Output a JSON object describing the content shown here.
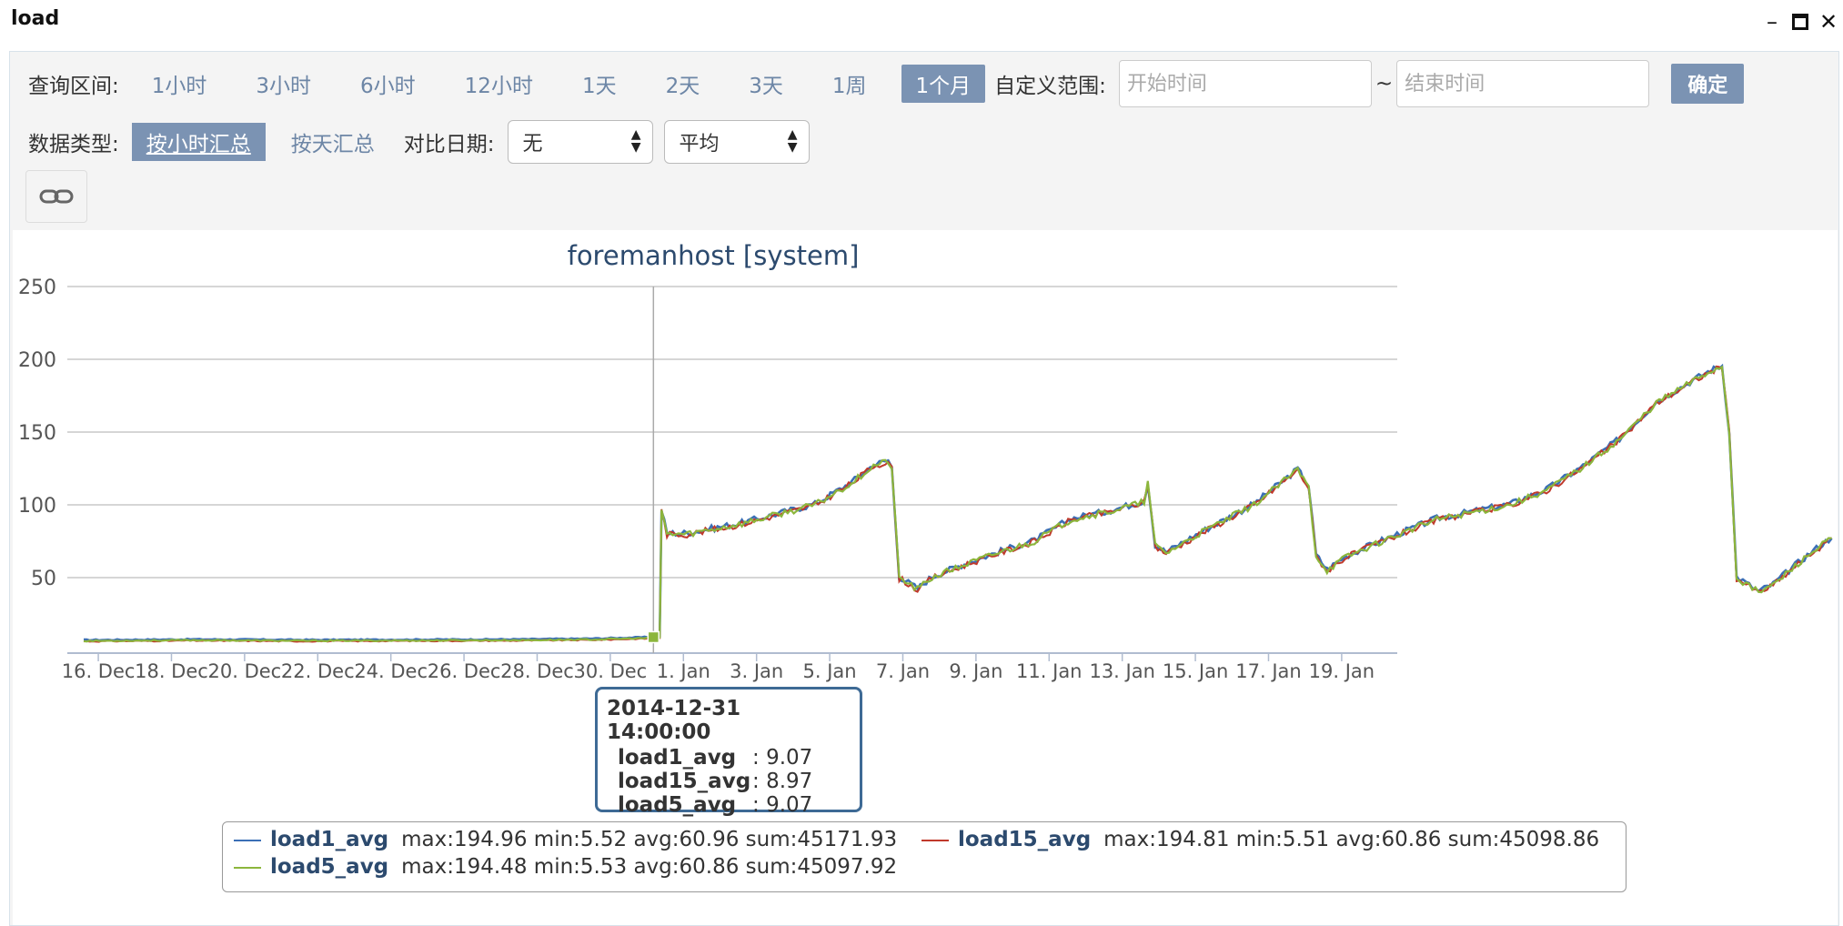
{
  "window": {
    "title": "load"
  },
  "query": {
    "range_label": "查询区间:",
    "ranges": [
      "1小时",
      "3小时",
      "6小时",
      "12小时",
      "1天",
      "2天",
      "3天",
      "1周",
      "1个月"
    ],
    "active_range": "1个月",
    "custom_label": "自定义范围:",
    "start_placeholder": "开始时间",
    "tilde": "~",
    "end_placeholder": "结束时间",
    "confirm": "确定"
  },
  "data_type": {
    "label": "数据类型:",
    "hourly": "按小时汇总",
    "daily": "按天汇总",
    "compare_label": "对比日期:",
    "compare_value": "无",
    "agg_value": "平均"
  },
  "chart_data": {
    "type": "line",
    "title": "foremanhost [system]",
    "x_tick_labels": [
      "16. Dec",
      "18. Dec",
      "20. Dec",
      "22. Dec",
      "24. Dec",
      "26. Dec",
      "28. Dec",
      "30. Dec",
      "1. Jan",
      "3. Jan",
      "5. Jan",
      "7. Jan",
      "9. Jan",
      "11. Jan",
      "13. Jan",
      "15. Jan",
      "17. Jan",
      "19. Jan"
    ],
    "y_ticks": [
      50,
      100,
      150,
      200,
      250
    ],
    "ylim": [
      0,
      250
    ],
    "x_range_days": [
      0,
      35.1
    ],
    "grid": true,
    "legend_position": "bottom",
    "colors": {
      "load1_avg": "#3b6fb6",
      "load15_avg": "#c0392b",
      "load5_avg": "#8cb63c"
    },
    "points": [
      [
        0.0,
        6.5
      ],
      [
        3.0,
        7.0
      ],
      [
        6.0,
        6.6
      ],
      [
        9.0,
        6.8
      ],
      [
        12.0,
        7.0
      ],
      [
        14.0,
        7.5
      ],
      [
        15.5,
        8.5
      ],
      [
        15.75,
        9.0
      ],
      [
        15.8,
        96
      ],
      [
        15.95,
        80
      ],
      [
        16.5,
        80
      ],
      [
        18.0,
        87
      ],
      [
        20.0,
        100
      ],
      [
        21.0,
        115
      ],
      [
        21.6,
        127
      ],
      [
        22.0,
        130
      ],
      [
        22.1,
        125
      ],
      [
        22.3,
        50
      ],
      [
        22.8,
        42
      ],
      [
        23.2,
        50
      ],
      [
        24.0,
        58
      ],
      [
        25.0,
        67
      ],
      [
        26.0,
        75
      ],
      [
        27.0,
        90
      ],
      [
        28.0,
        95
      ],
      [
        29.0,
        102
      ],
      [
        29.1,
        115
      ],
      [
        29.3,
        72
      ],
      [
        29.6,
        67
      ],
      [
        30.5,
        80
      ],
      [
        32.0,
        100
      ],
      [
        33.0,
        120
      ],
      [
        33.2,
        124
      ],
      [
        33.5,
        112
      ],
      [
        33.7,
        65
      ],
      [
        34.0,
        55
      ],
      [
        34.5,
        64
      ],
      [
        35.5,
        75
      ],
      [
        37.0,
        90
      ],
      [
        38.0,
        95
      ],
      [
        39.0,
        100
      ],
      [
        40.0,
        110
      ],
      [
        41.0,
        126
      ],
      [
        42.0,
        145
      ],
      [
        43.0,
        170
      ],
      [
        44.0,
        185
      ],
      [
        44.5,
        192
      ],
      [
        44.8,
        195
      ],
      [
        45.0,
        150
      ],
      [
        45.2,
        50
      ],
      [
        45.8,
        40
      ],
      [
        46.2,
        45
      ],
      [
        46.8,
        58
      ],
      [
        47.3,
        68
      ],
      [
        47.8,
        77
      ]
    ],
    "series": [
      {
        "name": "load1_avg",
        "max": 194.96,
        "min": 5.52,
        "avg": 60.96,
        "sum": 45171.93
      },
      {
        "name": "load15_avg",
        "max": 194.81,
        "min": 5.51,
        "avg": 60.86,
        "sum": 45098.86
      },
      {
        "name": "load5_avg",
        "max": 194.48,
        "min": 5.53,
        "avg": 60.86,
        "sum": 45097.92
      }
    ],
    "tooltip": {
      "date": "2014-12-31 14:00:00",
      "rows": [
        {
          "name": "load1_avg",
          "value": "9.07"
        },
        {
          "name": "load15_avg",
          "value": "8.97"
        },
        {
          "name": "load5_avg",
          "value": "9.07"
        }
      ]
    }
  },
  "legend_text": {
    "load1_stats": "max:194.96 min:5.52 avg:60.96 sum:45171.93",
    "load15_stats": "max:194.81 min:5.51 avg:60.86 sum:45098.86",
    "load5_stats": "max:194.48 min:5.53 avg:60.86 sum:45097.92"
  },
  "tooltip_sep": ":"
}
